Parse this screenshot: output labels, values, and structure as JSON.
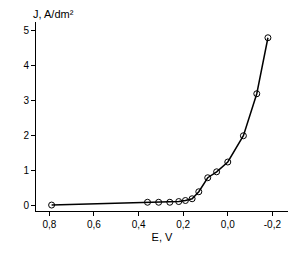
{
  "chart_data": {
    "type": "line",
    "x_label": "E, V",
    "y_label": "J, A/dm²",
    "x": [
      0.79,
      0.36,
      0.31,
      0.26,
      0.22,
      0.19,
      0.16,
      0.13,
      0.09,
      0.05,
      0.0,
      -0.07,
      -0.13,
      -0.18
    ],
    "values": [
      0.02,
      0.1,
      0.1,
      0.1,
      0.12,
      0.15,
      0.2,
      0.4,
      0.8,
      0.97,
      1.25,
      2.0,
      3.2,
      4.8
    ],
    "color": "#000000",
    "marker": "circle-open",
    "xlim": [
      0.86,
      -0.27
    ],
    "xticks": [
      {
        "value": 0.8,
        "label": "0,8"
      },
      {
        "value": 0.6,
        "label": "0,6"
      },
      {
        "value": 0.4,
        "label": "0,4"
      },
      {
        "value": 0.2,
        "label": "0,2"
      },
      {
        "value": 0.0,
        "label": "0,0"
      },
      {
        "value": -0.2,
        "label": "-0,2"
      }
    ],
    "ylim": [
      -0.15,
      5.25
    ],
    "yticks": [
      0,
      1,
      2,
      3,
      4,
      5
    ],
    "grid": false
  }
}
